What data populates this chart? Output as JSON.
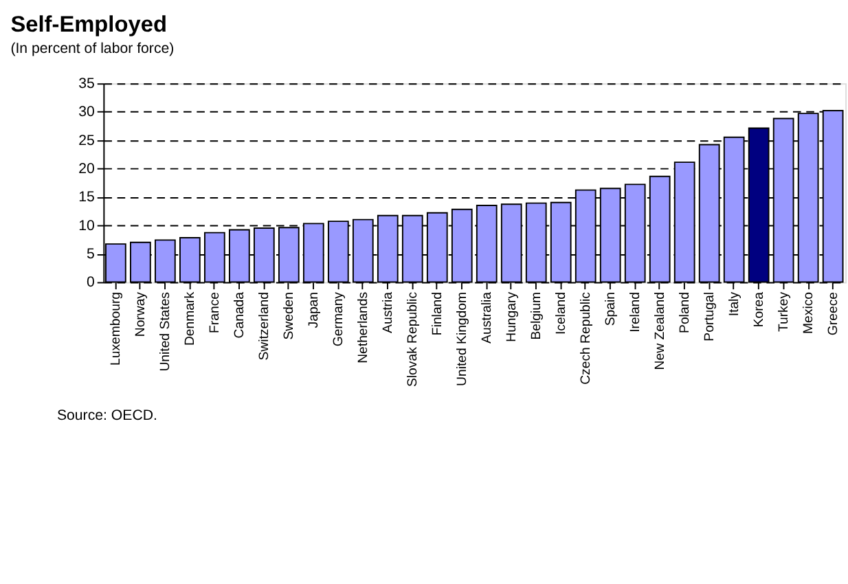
{
  "chart_data": {
    "type": "bar",
    "title": "Self-Employed",
    "subtitle": "(In percent of labor force)",
    "categories": [
      "Luxembourg",
      "Norway",
      "United States",
      "Denmark",
      "France",
      "Canada",
      "Switzerland",
      "Sweden",
      "Japan",
      "Germany",
      "Netherlands",
      "Austria",
      "Slovak Republic",
      "Finland",
      "United Kingdom",
      "Australia",
      "Hungary",
      "Belgium",
      "Iceland",
      "Czech Republic",
      "Spain",
      "Ireland",
      "New Zealand",
      "Poland",
      "Portugal",
      "Italy",
      "Korea",
      "Turkey",
      "Mexico",
      "Greece"
    ],
    "values": [
      6.7,
      7.0,
      7.4,
      7.8,
      8.7,
      9.2,
      9.5,
      9.6,
      10.3,
      10.7,
      11.0,
      11.7,
      11.7,
      12.2,
      12.8,
      13.5,
      13.7,
      13.9,
      14.0,
      16.2,
      16.5,
      17.2,
      18.6,
      21.1,
      24.2,
      25.5,
      27.1,
      28.8,
      29.7,
      30.2
    ],
    "colors": [
      "#9999ff",
      "#9999ff",
      "#9999ff",
      "#9999ff",
      "#9999ff",
      "#9999ff",
      "#9999ff",
      "#9999ff",
      "#9999ff",
      "#9999ff",
      "#9999ff",
      "#9999ff",
      "#9999ff",
      "#9999ff",
      "#9999ff",
      "#9999ff",
      "#9999ff",
      "#9999ff",
      "#9999ff",
      "#9999ff",
      "#9999ff",
      "#9999ff",
      "#9999ff",
      "#9999ff",
      "#9999ff",
      "#9999ff",
      "#000080",
      "#9999ff",
      "#9999ff",
      "#9999ff"
    ],
    "ylim": [
      0,
      35
    ],
    "yticks": [
      0,
      5,
      10,
      15,
      20,
      25,
      30,
      35
    ],
    "grid": "y",
    "legend": false,
    "annotations": [
      "Source: OECD."
    ]
  }
}
